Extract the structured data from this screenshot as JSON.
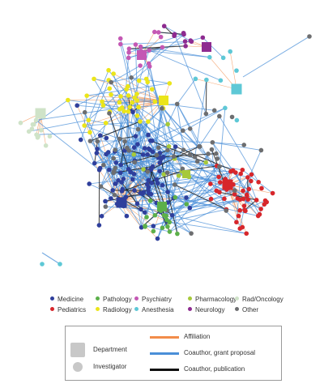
{
  "legend_categories": [
    {
      "label": "Medicine",
      "color": "#2f3f9c"
    },
    {
      "label": "Pediatrics",
      "color": "#d7262b"
    },
    {
      "label": "Pathology",
      "color": "#5cb04a"
    },
    {
      "label": "Radiology",
      "color": "#ebe51a"
    },
    {
      "label": "Psychiatry",
      "color": "#c458b4"
    },
    {
      "label": "Anesthesia",
      "color": "#5ec8d6"
    },
    {
      "label": "Pharmacology",
      "color": "#a6c93a"
    },
    {
      "label": "Neurology",
      "color": "#8e2b90"
    },
    {
      "label": "Rad/Oncology",
      "color": "#cfe3c8"
    },
    {
      "label": "Other",
      "color": "#6d6e70"
    }
  ],
  "legend_nodes": {
    "department": "Department",
    "investigator": "Investigator",
    "node_color": "#c8c8c8"
  },
  "legend_edges": [
    {
      "label": "Affiliation",
      "color": "#f28c4a"
    },
    {
      "label": "Coauthor, grant proposal",
      "color": "#4a8fd8"
    },
    {
      "label": "Coauthor, publication",
      "color": "#111111"
    }
  ]
}
